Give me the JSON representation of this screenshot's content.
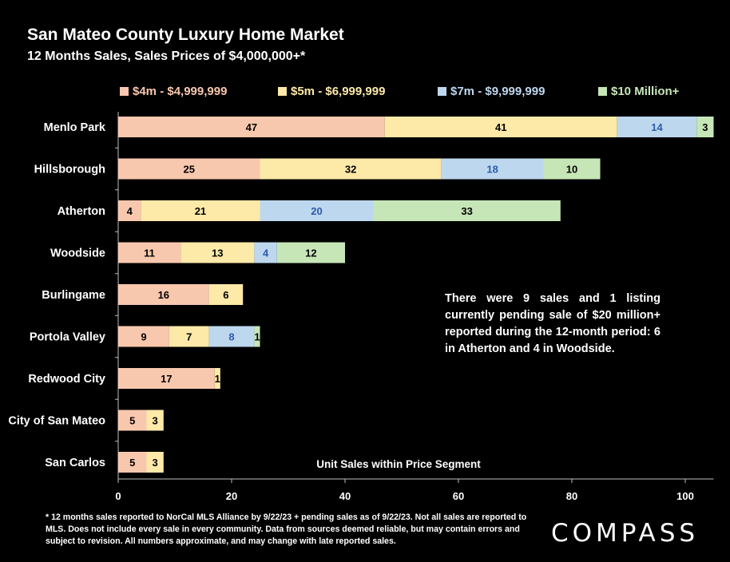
{
  "header": {
    "title": "San Mateo County Luxury Home Market",
    "subtitle": "12 Months Sales, Sales Prices of $4,000,000+*"
  },
  "colors": {
    "seg_4m": "#f8c8ae",
    "seg_5m": "#fde9a8",
    "seg_7m": "#bdd7ee",
    "seg_10m": "#c7e6b8",
    "label_7m": "#2e5aa8",
    "legend_text": [
      "#f8c8ae",
      "#fde9a8",
      "#bdd7ee",
      "#c7e6b8"
    ]
  },
  "annotation": "There were 9 sales and 1 listing currently pending sale of $20 million+ reported during the 12-month period: 6 in Atherton and 4 in Woodside.",
  "footnote": "* 12 months sales reported to NorCal MLS Alliance by 9/22/23 + pending sales as of 9/22/23. Not all sales are reported to MLS. Does not include every sale in every community. Data from  sources deemed reliable, but may contain errors and subject to revision. All numbers approximate, and may change with late reported sales.",
  "logo": "COMPASS",
  "chart_data": {
    "type": "bar",
    "orientation": "horizontal",
    "stacked": true,
    "title": "San Mateo County Luxury Home Market",
    "subtitle": "12 Months Sales, Sales Prices of $4,000,000+*",
    "xlabel": "Unit Sales within Price Segment",
    "xlim": [
      0,
      105
    ],
    "xticks": [
      0,
      20,
      40,
      60,
      80,
      100
    ],
    "legend_position": "top",
    "categories": [
      "Menlo Park",
      "Hillsborough",
      "Atherton",
      "Woodside",
      "Burlingame",
      "Portola Valley",
      "Redwood City",
      "City of San Mateo",
      "San Carlos"
    ],
    "series": [
      {
        "name": "$4m - $4,999,999",
        "values": [
          47,
          25,
          4,
          11,
          16,
          9,
          17,
          5,
          5
        ]
      },
      {
        "name": "$5m - $6,999,999",
        "values": [
          41,
          32,
          21,
          13,
          6,
          7,
          1,
          3,
          3
        ]
      },
      {
        "name": "$7m - $9,999,999",
        "values": [
          14,
          18,
          20,
          4,
          0,
          8,
          0,
          0,
          0
        ]
      },
      {
        "name": "$10 Million+",
        "values": [
          3,
          10,
          33,
          12,
          0,
          1,
          0,
          0,
          0
        ]
      }
    ]
  }
}
